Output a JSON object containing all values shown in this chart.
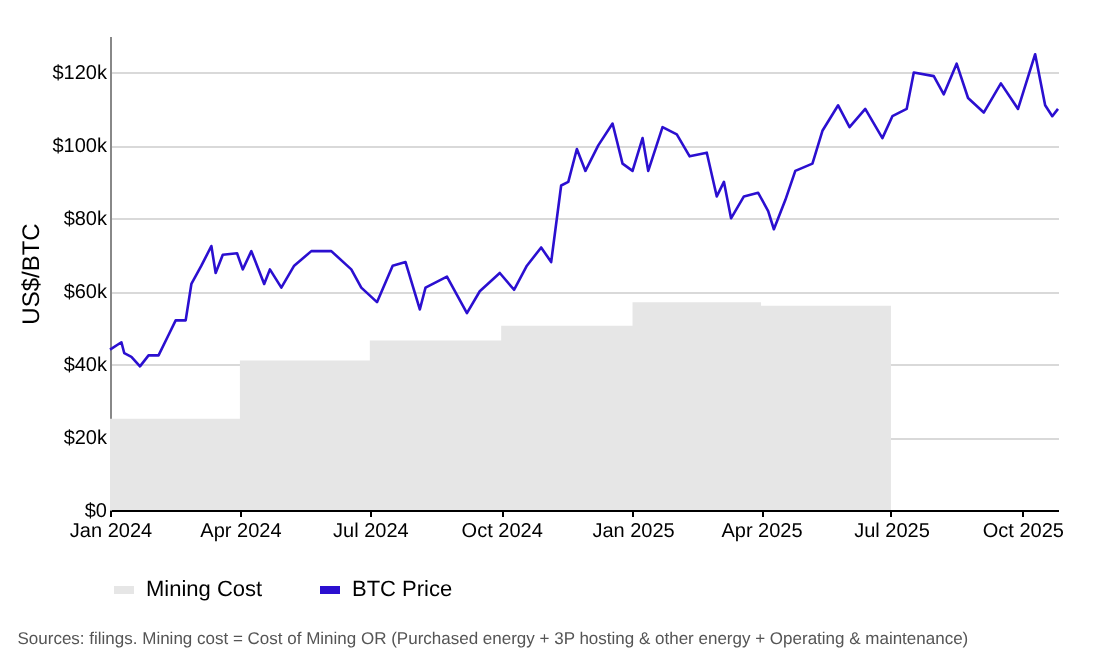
{
  "chart_data": {
    "type": "line",
    "ylabel": "US$/BTC",
    "xlim": [
      "2024-01-01",
      "2025-10-26"
    ],
    "xticks": [
      {
        "value": "2024-01-01",
        "label": "Jan 2024"
      },
      {
        "value": "2024-04-01",
        "label": "Apr 2024"
      },
      {
        "value": "2024-07-01",
        "label": "Jul 2024"
      },
      {
        "value": "2024-10-01",
        "label": "Oct 2024"
      },
      {
        "value": "2025-01-01",
        "label": "Jan 2025"
      },
      {
        "value": "2025-04-01",
        "label": "Apr 2025"
      },
      {
        "value": "2025-07-01",
        "label": "Jul 2025"
      },
      {
        "value": "2025-10-01",
        "label": "Oct 2025"
      }
    ],
    "ylim": [
      0,
      130000
    ],
    "yticks": [
      {
        "value": 0,
        "label": "$0"
      },
      {
        "value": 20000,
        "label": "$20k"
      },
      {
        "value": 40000,
        "label": "$40k"
      },
      {
        "value": 60000,
        "label": "$60k"
      },
      {
        "value": 80000,
        "label": "$80k"
      },
      {
        "value": 100000,
        "label": "$100k"
      },
      {
        "value": 120000,
        "label": "$120k"
      }
    ],
    "grid": "y",
    "legend": "bottom",
    "series": [
      {
        "name": "Mining Cost",
        "type": "area",
        "color": "#e6e6e6",
        "x": [
          "2024-01-01",
          "2024-04-01",
          "2024-07-01",
          "2024-10-01",
          "2025-01-01",
          "2025-04-01",
          "2025-07-01"
        ],
        "values": [
          25000,
          41000,
          46500,
          50500,
          57000,
          56000,
          56000
        ]
      },
      {
        "name": "BTC Price",
        "type": "line",
        "color": "#2b0fd0",
        "x": [
          "2024-01-01",
          "2024-01-09",
          "2024-01-11",
          "2024-01-16",
          "2024-01-22",
          "2024-01-28",
          "2024-02-04",
          "2024-02-11",
          "2024-02-16",
          "2024-02-23",
          "2024-02-27",
          "2024-03-05",
          "2024-03-12",
          "2024-03-15",
          "2024-03-20",
          "2024-03-30",
          "2024-04-03",
          "2024-04-09",
          "2024-04-18",
          "2024-04-22",
          "2024-04-30",
          "2024-05-09",
          "2024-05-21",
          "2024-06-04",
          "2024-06-18",
          "2024-06-25",
          "2024-07-06",
          "2024-07-17",
          "2024-07-26",
          "2024-08-05",
          "2024-08-09",
          "2024-08-24",
          "2024-09-07",
          "2024-09-16",
          "2024-09-30",
          "2024-10-10",
          "2024-10-19",
          "2024-10-29",
          "2024-11-05",
          "2024-11-12",
          "2024-11-17",
          "2024-11-23",
          "2024-11-29",
          "2024-12-08",
          "2024-12-18",
          "2024-12-25",
          "2025-01-01",
          "2025-01-08",
          "2025-01-12",
          "2025-01-22",
          "2025-02-01",
          "2025-02-10",
          "2025-02-22",
          "2025-03-01",
          "2025-03-06",
          "2025-03-11",
          "2025-03-20",
          "2025-03-30",
          "2025-04-06",
          "2025-04-10",
          "2025-04-18",
          "2025-04-25",
          "2025-05-07",
          "2025-05-14",
          "2025-05-25",
          "2025-06-02",
          "2025-06-13",
          "2025-06-25",
          "2025-07-02",
          "2025-07-12",
          "2025-07-17",
          "2025-07-31",
          "2025-08-07",
          "2025-08-16",
          "2025-08-24",
          "2025-09-04",
          "2025-09-16",
          "2025-09-28",
          "2025-10-10",
          "2025-10-17",
          "2025-10-22",
          "2025-10-26"
        ],
        "values": [
          44000,
          46000,
          43000,
          42000,
          39400,
          42400,
          42400,
          48000,
          52000,
          52000,
          62000,
          67000,
          72400,
          65000,
          70000,
          70400,
          66000,
          71000,
          62000,
          66000,
          61000,
          67000,
          71000,
          71000,
          66000,
          61000,
          57000,
          67000,
          68000,
          55000,
          61000,
          64000,
          54000,
          60000,
          65000,
          60400,
          67000,
          72000,
          68000,
          89000,
          90000,
          99000,
          93000,
          100000,
          106000,
          95000,
          93000,
          102000,
          93000,
          105000,
          103000,
          97000,
          98000,
          86000,
          90000,
          80000,
          86000,
          87000,
          82000,
          77000,
          85000,
          93000,
          95000,
          104000,
          111000,
          105000,
          110000,
          102000,
          108000,
          110000,
          120000,
          119000,
          114000,
          122400,
          113000,
          109000,
          117000,
          110000,
          125000,
          111000,
          108000,
          110000
        ]
      }
    ],
    "annotations": [
      "Sources: filings. Mining cost = Cost of Mining OR (Purchased energy + 3P hosting & other energy + Operating & maintenance)"
    ]
  }
}
